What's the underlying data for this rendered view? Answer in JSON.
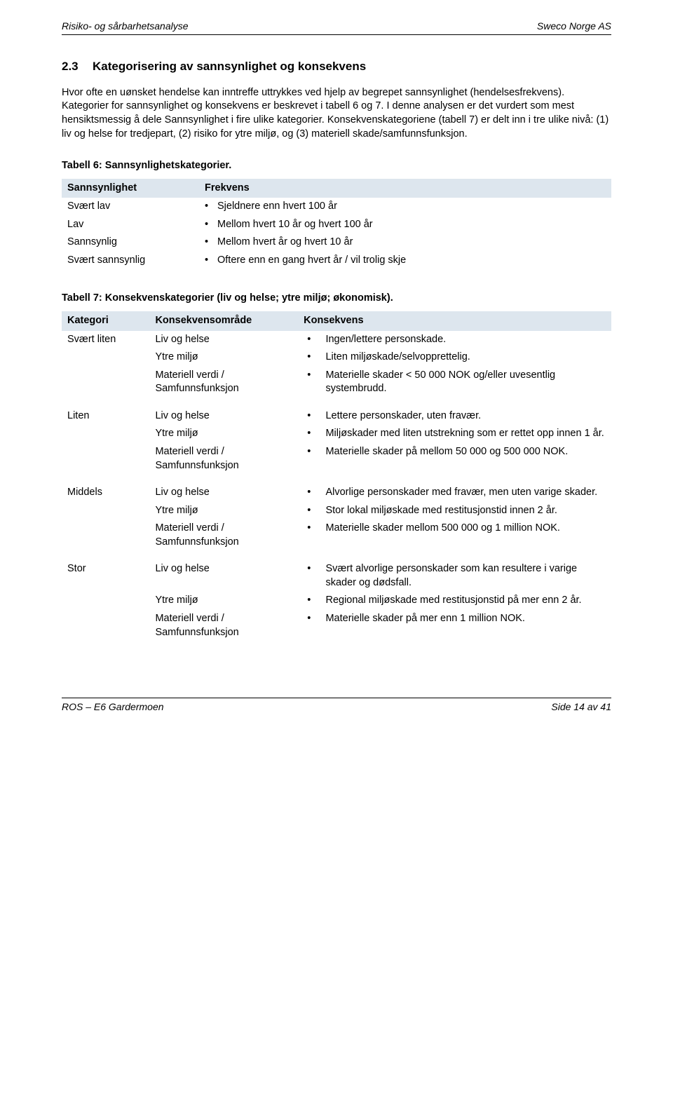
{
  "header": {
    "left": "Risiko- og sårbarhetsanalyse",
    "right": "Sweco Norge AS"
  },
  "section": {
    "num": "2.3",
    "title": "Kategorisering av sannsynlighet og konsekvens"
  },
  "para": "Hvor ofte en uønsket hendelse kan inntreffe uttrykkes ved hjelp av begrepet sannsynlighet (hendelsesfrekvens). Kategorier for sannsynlighet og konsekvens er beskrevet i tabell 6 og 7. I denne analysen er det vurdert som mest hensiktsmessig å dele Sannsynlighet i fire ulike kategorier. Konsekvenskategoriene (tabell 7) er delt inn i tre ulike nivå: (1) liv og helse for tredjepart, (2) risiko for ytre miljø, og (3) materiell skade/samfunnsfunksjon.",
  "table6": {
    "caption": "Tabell 6: Sannsynlighetskategorier.",
    "head": [
      "Sannsynlighet",
      "Frekvens"
    ],
    "rows": [
      [
        "Svært lav",
        "Sjeldnere enn hvert 100 år"
      ],
      [
        "Lav",
        "Mellom hvert 10 år og hvert 100 år"
      ],
      [
        "Sannsynlig",
        "Mellom hvert år og hvert 10 år"
      ],
      [
        "Svært sannsynlig",
        "Oftere enn en gang hvert år / vil trolig skje"
      ]
    ]
  },
  "table7": {
    "caption": "Tabell 7: Konsekvenskategorier (liv og helse; ytre miljø; økonomisk).",
    "head": [
      "Kategori",
      "Konsekvensområde",
      "Konsekvens"
    ],
    "groups": [
      {
        "kategori": "Svært liten",
        "rows": [
          [
            "Liv og helse",
            "Ingen/lettere personskade."
          ],
          [
            "Ytre miljø",
            "Liten miljøskade/selvopprettelig."
          ],
          [
            "Materiell verdi / Samfunnsfunksjon",
            "Materielle skader < 50 000 NOK og/eller uvesentlig systembrudd."
          ]
        ]
      },
      {
        "kategori": "Liten",
        "rows": [
          [
            "Liv og helse",
            "Lettere personskader, uten fravær."
          ],
          [
            "Ytre miljø",
            "Miljøskader med liten utstrekning som er rettet opp innen 1 år."
          ],
          [
            "Materiell verdi / Samfunnsfunksjon",
            "Materielle skader på mellom 50 000 og 500 000 NOK."
          ]
        ]
      },
      {
        "kategori": "Middels",
        "rows": [
          [
            "Liv og helse",
            "Alvorlige personskader med fravær, men uten varige skader."
          ],
          [
            "Ytre miljø",
            "Stor lokal miljøskade med restitusjonstid innen 2 år."
          ],
          [
            "Materiell verdi / Samfunnsfunksjon",
            "Materielle skader mellom 500 000 og 1 million NOK."
          ]
        ]
      },
      {
        "kategori": "Stor",
        "rows": [
          [
            "Liv og helse",
            "Svært alvorlige personskader som kan resultere i varige skader og dødsfall."
          ],
          [
            "Ytre miljø",
            "Regional miljøskade med restitusjonstid på mer enn 2 år."
          ],
          [
            "Materiell verdi / Samfunnsfunksjon",
            "Materielle skader på mer enn 1 million NOK."
          ]
        ]
      }
    ]
  },
  "footer": {
    "left": "ROS – E6 Gardermoen",
    "right": "Side 14 av 41"
  },
  "colors": {
    "table_header_bg": "#dde6ee",
    "text": "#000000",
    "rule": "#000000"
  }
}
